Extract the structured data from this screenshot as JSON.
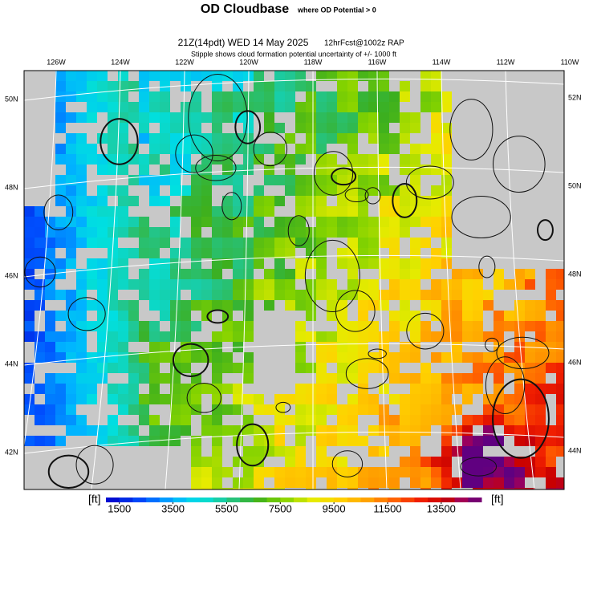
{
  "header": {
    "title": "OD Cloudbase",
    "title_note": "where OD Potential > 0",
    "valid": "21Z(14pdt) WED 14 May 2025",
    "model": "12hrFcst@1002z RAP",
    "note": "Stipple shows cloud formation potential uncertainty of +/- 1000 ft"
  },
  "map": {
    "lon_labels": [
      "126W",
      "124W",
      "122W",
      "120W",
      "118W",
      "116W",
      "114W",
      "112W",
      "110W"
    ],
    "left_lat_labels": [
      "50N",
      "48N",
      "46N",
      "44N",
      "42N"
    ],
    "right_lat_labels": [
      "52N",
      "50N",
      "48N",
      "46N",
      "44N"
    ]
  },
  "colorbar": {
    "unit": "[ft]",
    "lim": [
      1000,
      15000
    ],
    "ticks": [
      1500,
      3500,
      5500,
      7500,
      9500,
      11500,
      13500
    ]
  }
}
